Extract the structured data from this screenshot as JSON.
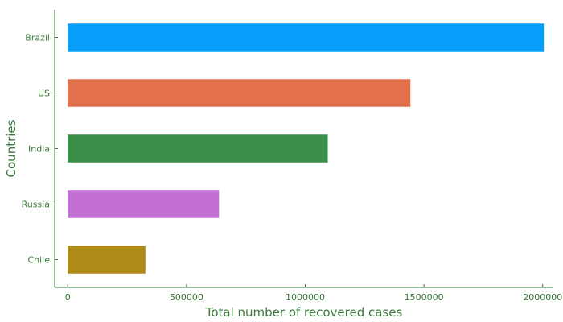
{
  "chart_data": {
    "type": "bar",
    "orientation": "horizontal",
    "title": "",
    "xlabel": "Total number of recovered cases",
    "ylabel": "Countries",
    "categories": [
      "Brazil",
      "US",
      "India",
      "Russia",
      "Chile"
    ],
    "values": [
      2005000,
      1443000,
      1095000,
      637000,
      327000
    ],
    "colors": [
      "#069ef9",
      "#e2714b",
      "#3a8e47",
      "#c46fd3",
      "#ae8b18"
    ],
    "xlim": [
      -55000,
      2045000
    ],
    "xticks": [
      0,
      500000,
      1000000,
      1500000,
      2000000
    ],
    "xtick_labels": [
      "0",
      "500000",
      "1000000",
      "1500000",
      "2000000"
    ],
    "grid": false,
    "legend": false,
    "text_color": "#3a7a3a",
    "axis_color": "#3a7a3a"
  }
}
